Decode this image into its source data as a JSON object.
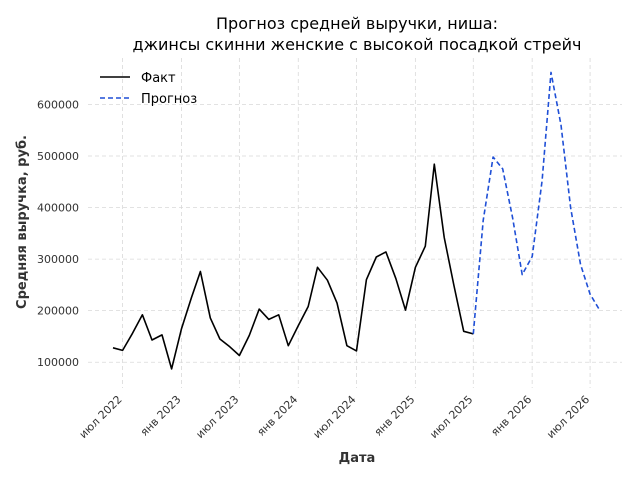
{
  "chart_data": {
    "type": "line",
    "title_line1": "Прогноз средней выручки, ниша:",
    "title_line2": "джинсы скинни женские с высокой посадкой стрейч",
    "xlabel": "Дата",
    "ylabel": "Средняя выручка, руб.",
    "ylim": [
      50000,
      690000
    ],
    "y_ticks": [
      100000,
      200000,
      300000,
      400000,
      500000,
      600000
    ],
    "x_ticks": [
      {
        "label": "июл 2022",
        "x": "2022-07-01"
      },
      {
        "label": "янв 2023",
        "x": "2023-01-01"
      },
      {
        "label": "июл 2023",
        "x": "2023-07-01"
      },
      {
        "label": "янв 2024",
        "x": "2024-01-01"
      },
      {
        "label": "июл 2024",
        "x": "2024-07-01"
      },
      {
        "label": "янв 2025",
        "x": "2025-01-01"
      },
      {
        "label": "июл 2025",
        "x": "2025-07-01"
      },
      {
        "label": "янв 2026",
        "x": "2026-01-01"
      },
      {
        "label": "июл 2026",
        "x": "2026-07-01"
      }
    ],
    "legend_position": "top-left",
    "grid": true,
    "series": [
      {
        "name": "Факт",
        "color": "#000000",
        "style": "solid",
        "x": [
          "2022-06-01",
          "2022-07-01",
          "2022-08-01",
          "2022-09-01",
          "2022-10-01",
          "2022-11-01",
          "2022-12-01",
          "2023-01-01",
          "2023-02-01",
          "2023-03-01",
          "2023-04-01",
          "2023-05-01",
          "2023-06-01",
          "2023-07-01",
          "2023-08-01",
          "2023-09-01",
          "2023-10-01",
          "2023-11-01",
          "2023-12-01",
          "2024-01-01",
          "2024-02-01",
          "2024-03-01",
          "2024-04-01",
          "2024-05-01",
          "2024-06-01",
          "2024-07-01",
          "2024-08-01",
          "2024-09-01",
          "2024-10-01",
          "2024-11-01",
          "2024-12-01",
          "2025-01-01",
          "2025-02-01",
          "2025-03-01",
          "2025-04-01",
          "2025-05-01",
          "2025-06-01",
          "2025-07-01"
        ],
        "values": [
          128000,
          123000,
          156000,
          192000,
          143000,
          153000,
          87000,
          165000,
          225000,
          276000,
          186000,
          145000,
          130000,
          113000,
          152000,
          203000,
          183000,
          192000,
          132000,
          171000,
          208000,
          284000,
          259000,
          215000,
          132000,
          122000,
          260000,
          304000,
          314000,
          262000,
          201000,
          284000,
          325000,
          484000,
          342000,
          250000,
          160000,
          155000
        ]
      },
      {
        "name": "Прогноз",
        "color": "#1f4fd6",
        "style": "dashed",
        "x": [
          "2025-07-01",
          "2025-08-01",
          "2025-09-01",
          "2025-10-01",
          "2025-11-01",
          "2025-12-01",
          "2026-01-01",
          "2026-02-01",
          "2026-03-01",
          "2026-04-01",
          "2026-05-01",
          "2026-06-01",
          "2026-07-01",
          "2026-08-01"
        ],
        "values": [
          155000,
          375000,
          498000,
          475000,
          380000,
          270000,
          305000,
          452000,
          662000,
          560000,
          400000,
          290000,
          232000,
          200000
        ]
      }
    ]
  }
}
